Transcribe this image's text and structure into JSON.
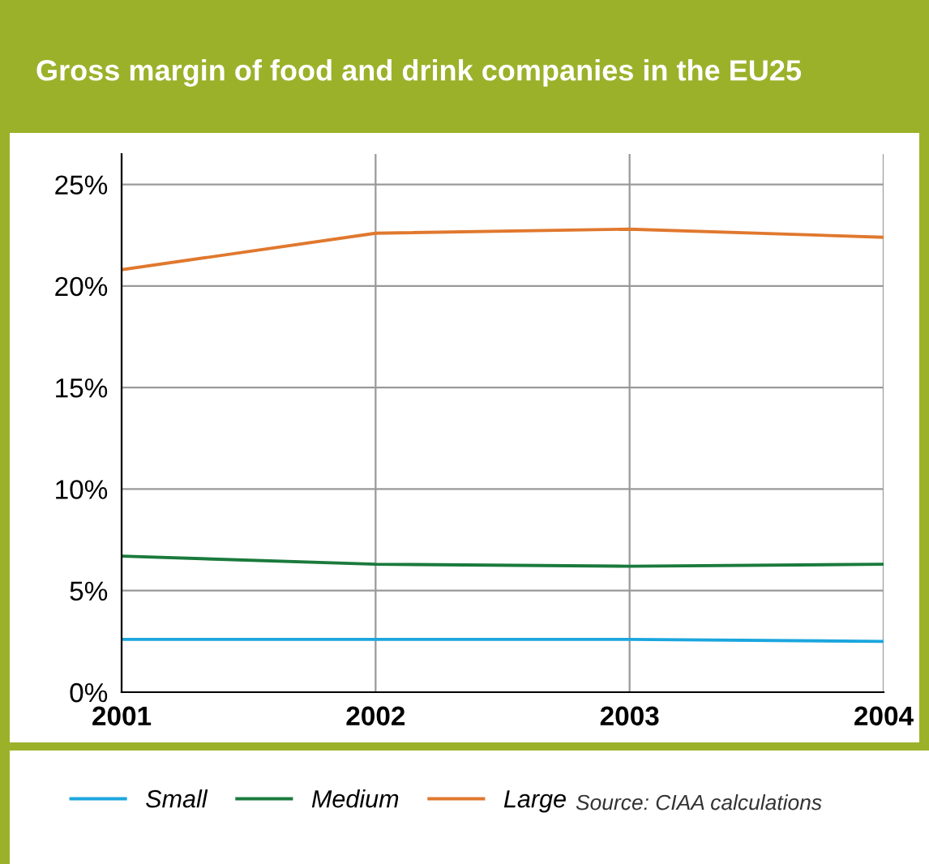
{
  "chart_data": {
    "type": "line",
    "title": "Gross margin of food and drink companies in the EU25",
    "categories": [
      "2001",
      "2002",
      "2003",
      "2004"
    ],
    "series": [
      {
        "name": "Small",
        "color": "#1ba6de",
        "values": [
          2.6,
          2.6,
          2.6,
          2.5
        ]
      },
      {
        "name": "Medium",
        "color": "#1a7a3c",
        "values": [
          6.7,
          6.3,
          6.2,
          6.3
        ]
      },
      {
        "name": "Large",
        "color": "#e0782e",
        "values": [
          20.8,
          22.6,
          22.8,
          22.4
        ]
      }
    ],
    "ylim": [
      0,
      26.5
    ],
    "yticks": [
      {
        "value": 0,
        "label": "0%"
      },
      {
        "value": 5,
        "label": "5%"
      },
      {
        "value": 10,
        "label": "10%"
      },
      {
        "value": 15,
        "label": "15%"
      },
      {
        "value": 20,
        "label": "20%"
      },
      {
        "value": 25,
        "label": "25%"
      }
    ],
    "grid": true,
    "legend": "bottom left",
    "marker": "none",
    "line_style": "solid",
    "annotations": [
      "Source: CIAA calculations"
    ]
  }
}
